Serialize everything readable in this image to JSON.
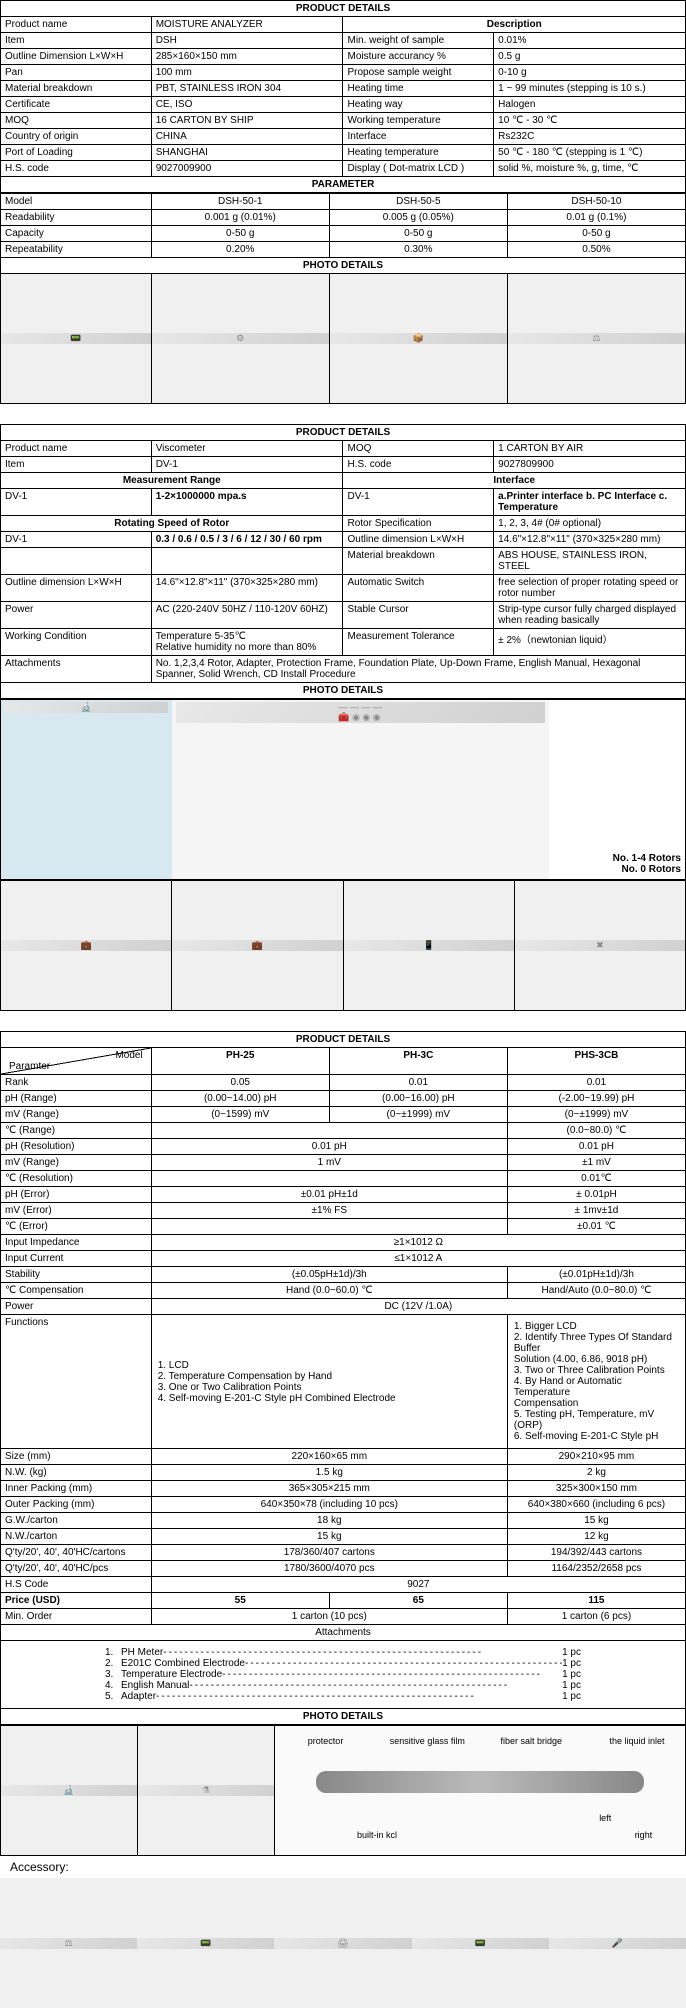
{
  "section1": {
    "title": "PRODUCT DETAILS",
    "descTitle": "Description",
    "rows": [
      [
        "Product name",
        "MOISTURE ANALYZER"
      ],
      [
        "Item",
        "DSH",
        "Min. weight of sample",
        "0.01%"
      ],
      [
        "Outline Dimension L×W×H",
        "285×160×150 mm",
        "Moisture accurancy %",
        "0.5 g"
      ],
      [
        "Pan",
        "100 mm",
        "Propose sample weight",
        "0-10 g"
      ],
      [
        "Material breakdown",
        "PBT, STAINLESS IRON 304",
        "Heating time",
        "1 ~ 99 minutes (stepping is 10 s.)"
      ],
      [
        "Certificate",
        "CE, ISO",
        "Heating way",
        "Halogen"
      ],
      [
        "MOQ",
        "16 CARTON BY SHIP",
        "Working temperature",
        "10 ℃ - 30 ℃"
      ],
      [
        "Country of origin",
        "CHINA",
        "Interface",
        "Rs232C"
      ],
      [
        "Port of Loading",
        "SHANGHAI",
        "Heating temperature",
        "50 ℃ - 180 ℃ (stepping is 1 ℃)"
      ],
      [
        "H.S. code",
        "9027009900",
        "Display ( Dot-matrix LCD )",
        "solid %, moisture %, g, time, ℃"
      ]
    ],
    "paramTitle": "PARAMETER",
    "paramHeaders": [
      "Model",
      "DSH-50-1",
      "DSH-50-5",
      "DSH-50-10"
    ],
    "paramRows": [
      [
        "Readability",
        "0.001 g (0.01%)",
        "0.005 g (0.05%)",
        "0.01 g (0.1%)"
      ],
      [
        "Capacity",
        "0-50 g",
        "0-50 g",
        "0-50 g"
      ],
      [
        "Repeatability",
        "0.20%",
        "0.30%",
        "0.50%"
      ]
    ],
    "photoTitle": "PHOTO DETAILS"
  },
  "section2": {
    "title": "PRODUCT DETAILS",
    "topRows": [
      [
        "Product name",
        "Viscometer",
        "MOQ",
        "1 CARTON BY AIR"
      ],
      [
        "Item",
        "DV-1",
        "H.S. code",
        "9027809900"
      ]
    ],
    "measTitle": "Measurement Range",
    "ifaceTitle": "Interface",
    "measRows": [
      [
        "DV-1",
        "1-2×1000000 mpa.s",
        "DV-1",
        "a.Printer interface b. PC Interface c. Temperature"
      ]
    ],
    "rotTitle": "Rotating Speed of Rotor",
    "rotSpec": "Rotor Specification",
    "rotSpecVal": "1, 2, 3, 4# (0# optional)",
    "midRows": [
      [
        "DV-1",
        "0.3 / 0.6 / 0.5 / 3 / 6 / 12 / 30 / 60 rpm",
        "Outline dimension L×W×H",
        "14.6\"×12.8\"×11\" (370×325×280 mm)"
      ],
      [
        "",
        "",
        "Material breakdown",
        "ABS HOUSE, STAINLESS IRON, STEEL"
      ],
      [
        "Outline dimension L×W×H",
        "14.6\"×12.8\"×11\" (370×325×280 mm)",
        "Automatic Switch",
        "free selection of proper rotating speed or rotor number"
      ],
      [
        "Power",
        "AC (220-240V 50HZ / 110-120V 60HZ)",
        "Stable Cursor",
        "Strip-type cursor fully charged displayed when reading basically"
      ],
      [
        "Working Condition",
        "Temperature 5-35℃\nRelative humidity no more than 80%",
        "Measurement Tolerance",
        "± 2%（newtonian liquid）"
      ]
    ],
    "attachLabel": "Attachments",
    "attachVal": "No. 1,2,3,4 Rotor, Adapter, Protection Frame, Foundation Plate, Up-Down Frame, English Manual, Hexagonal Spanner, Solid Wrench, CD Install Procedure",
    "photoTitle": "PHOTO DETAILS",
    "rotorLabel1": "No. 1-4 Rotors",
    "rotorLabel2": "No. 0 Rotors"
  },
  "section3": {
    "title": "PRODUCT DETAILS",
    "paramLabel": "Paramter",
    "modelLabel": "Model",
    "models": [
      "PH-25",
      "PH-3C",
      "PHS-3CB"
    ],
    "rows": [
      {
        "label": "Rank",
        "cells": [
          "0.05",
          "0.01",
          "0.01"
        ]
      },
      {
        "label": "pH (Range)",
        "cells": [
          "(0.00~14.00) pH",
          "(0.00~16.00) pH",
          "(-2.00~19.99) pH"
        ]
      },
      {
        "label": "mV (Range)",
        "cells": [
          "(0~1599) mV",
          "(0~±1999) mV",
          "(0~±1999) mV"
        ]
      },
      {
        "label": "℃ (Range)",
        "cells": [
          "",
          "",
          "(0.0~80.0) ℃"
        ],
        "span2": true
      },
      {
        "label": "pH (Resolution)",
        "cells": [
          "0.01 pH",
          "",
          "0.01 pH"
        ],
        "span2": true
      },
      {
        "label": "mV (Range)",
        "cells": [
          "1 mV",
          "",
          "±1 mV"
        ],
        "span2": true
      },
      {
        "label": "℃ (Resolution)",
        "cells": [
          "",
          "",
          "0.01℃"
        ],
        "span2": true
      },
      {
        "label": "pH (Error)",
        "cells": [
          "±0.01 pH±1d",
          "",
          "± 0.01pH"
        ],
        "span2": true
      },
      {
        "label": "mV (Error)",
        "cells": [
          "±1% FS",
          "",
          "± 1mv±1d"
        ],
        "span2": true
      },
      {
        "label": "℃ (Error)",
        "cells": [
          "",
          "",
          "±0.01 ℃"
        ],
        "span2": true
      },
      {
        "label": "Input Impedance",
        "cells": [
          "≥1×1012 Ω"
        ],
        "span3": true
      },
      {
        "label": "Input Current",
        "cells": [
          "≤1×1012 A"
        ],
        "span3": true
      },
      {
        "label": "Stability",
        "cells": [
          "(±0.05pH±1d)/3h",
          "",
          "(±0.01pH±1d)/3h"
        ],
        "span2": true
      },
      {
        "label": "℃ Compensation",
        "cells": [
          "Hand (0.0~60.0) ℃",
          "",
          "Hand/Auto (0.0~80.0) ℃"
        ],
        "span2": true
      },
      {
        "label": "Power",
        "cells": [
          "DC (12V /1.0A)"
        ],
        "span3": true
      }
    ],
    "funcLabel": "Functions",
    "funcA": "1. LCD\n2. Temperature Compensation by Hand\n3. One or Two Calibration Points\n4. Self-moving E-201-C Style pH Combined Electrode",
    "funcB": "1. Bigger LCD\n2. Identify Three Types Of Standard Buffer\nSolution (4.00, 6.86, 9018 pH)\n3. Two or Three Calibration Points\n4. By Hand or Automatic Temperature\nCompensation\n5. Testing pH, Temperature, mV (ORP)\n6. Self-moving E-201-C Style pH",
    "bottomRows": [
      {
        "label": "Size (mm)",
        "cells": [
          "220×160×65 mm",
          "",
          "290×210×95 mm"
        ],
        "span2": true
      },
      {
        "label": "N.W. (kg)",
        "cells": [
          "1.5 kg",
          "",
          "2 kg"
        ],
        "span2": true
      },
      {
        "label": "Inner Packing (mm)",
        "cells": [
          "365×305×215 mm",
          "",
          "325×300×150 mm"
        ],
        "span2": true
      },
      {
        "label": "Outer Packing (mm)",
        "cells": [
          "640×350×78 (including 10 pcs)",
          "",
          "640×380×660 (including 6 pcs)"
        ],
        "span2": true
      },
      {
        "label": "G.W./carton",
        "cells": [
          "18 kg",
          "",
          "15 kg"
        ],
        "span2": true
      },
      {
        "label": "N.W./carton",
        "cells": [
          "15 kg",
          "",
          "12 kg"
        ],
        "span2": true
      },
      {
        "label": "Q'ty/20', 40', 40'HC/cartons",
        "cells": [
          "178/360/407 cartons",
          "",
          "194/392/443 cartons"
        ],
        "span2": true
      },
      {
        "label": "Q'ty/20', 40', 40'HC/pcs",
        "cells": [
          "1780/3600/4070 pcs",
          "",
          "1164/2352/2658 pcs"
        ],
        "span2": true
      },
      {
        "label": "H.S Code",
        "cells": [
          "9027"
        ],
        "span3": true
      }
    ],
    "priceLabel": "Price (USD)",
    "prices": [
      "55",
      "65",
      "115"
    ],
    "minOrderLabel": "Min. Order",
    "minOrders": [
      "1 carton (10 pcs)",
      "",
      "1 carton (6 pcs)"
    ],
    "attachTitle": "Attachments",
    "attachments": [
      {
        "num": "1.",
        "name": "PH Meter",
        "qty": "1 pc"
      },
      {
        "num": "2.",
        "name": "E201C Combined Electrode",
        "qty": "1 pc"
      },
      {
        "num": "3.",
        "name": "Temperature Electrode",
        "qty": "1 pc"
      },
      {
        "num": "4.",
        "name": "English Manual",
        "qty": "1 pc"
      },
      {
        "num": "5.",
        "name": "Adapter",
        "qty": "1 pc"
      }
    ],
    "photoTitle": "PHOTO DETAILS",
    "diagramLabels": {
      "protector": "protector",
      "glass": "sensitive glass film",
      "salt": "fiber salt bridge",
      "inlet": "the liquid inlet",
      "kcl": "built-in kcl",
      "left": "left",
      "right": "right"
    },
    "accessoryLabel": "Accessory:"
  },
  "colors": {
    "border": "#000000",
    "bg": "#ffffff",
    "photo": "#e0e0e0"
  }
}
